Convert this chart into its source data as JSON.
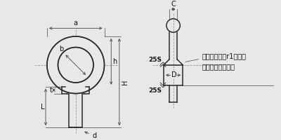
{
  "bg_color": "#e8e8e8",
  "line_color": "#2a2a2a",
  "dim_color": "#444444",
  "centerline_color": "#999999",
  "text_color": "#111111",
  "annotation_text": "首下には必ずr1以上の\n丸みをつけること",
  "label_a": "a",
  "label_b": "b",
  "label_h": "h",
  "label_H": "H",
  "label_t": "t",
  "label_L": "L",
  "label_d": "d",
  "label_C": "C",
  "label_D": "D",
  "label_25S_top": "25S",
  "label_25S_bot": "25S",
  "font_size_labels": 7,
  "font_size_annot": 6.5
}
